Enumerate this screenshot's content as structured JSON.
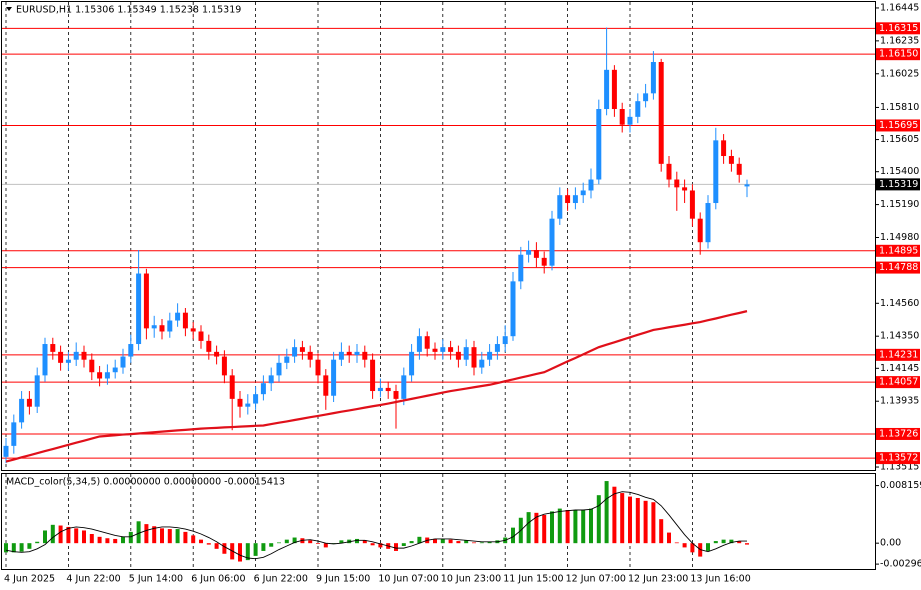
{
  "chart_data": [
    {
      "type": "candlestick",
      "title": "EURUSD,H1 1.15306 1.15349 1.15238 1.15319",
      "categories": [
        "4 Jun 2025",
        null,
        null,
        null,
        null,
        null,
        null,
        null,
        "4 Jun 22:00",
        null,
        null,
        null,
        null,
        null,
        null,
        null,
        "5 Jun 14:00",
        null,
        null,
        null,
        null,
        null,
        null,
        null,
        "6 Jun 06:00",
        null,
        null,
        null,
        null,
        null,
        null,
        null,
        "6 Jun 22:00",
        null,
        null,
        null,
        null,
        null,
        null,
        null,
        "9 Jun 15:00",
        null,
        null,
        null,
        null,
        null,
        null,
        null,
        "10 Jun 07:00",
        null,
        null,
        null,
        null,
        null,
        null,
        null,
        "10 Jun 23:00",
        null,
        null,
        null,
        null,
        null,
        null,
        null,
        "11 Jun 15:00",
        null,
        null,
        null,
        null,
        null,
        null,
        null,
        "12 Jun 07:00",
        null,
        null,
        null,
        null,
        null,
        null,
        null,
        "12 Jun 23:00",
        null,
        null,
        null,
        null,
        null,
        null,
        null,
        "13 Jun 16:00",
        null,
        null,
        null,
        null,
        null,
        null,
        null
      ],
      "open": [
        1.1358,
        1.1365,
        1.138,
        1.1395,
        1.139,
        1.141,
        1.143,
        1.1425,
        1.1418,
        1.142,
        1.1425,
        1.142,
        1.1412,
        1.1408,
        1.1412,
        1.1415,
        1.1422,
        1.143,
        1.1475,
        1.144,
        1.1442,
        1.1438,
        1.1445,
        1.145,
        1.144,
        1.1438,
        1.1432,
        1.1425,
        1.1422,
        1.141,
        1.1395,
        1.139,
        1.1392,
        1.1398,
        1.1405,
        1.141,
        1.1418,
        1.1422,
        1.1428,
        1.1425,
        1.142,
        1.141,
        1.1397,
        1.142,
        1.1425,
        1.1423,
        1.1425,
        1.142,
        1.14,
        1.1402,
        1.14,
        1.1395,
        1.141,
        1.1425,
        1.1435,
        1.1427,
        1.1425,
        1.1428,
        1.1425,
        1.142,
        1.1428,
        1.1415,
        1.142,
        1.1425,
        1.143,
        1.1435,
        1.147,
        1.1487,
        1.149,
        1.1485,
        1.148,
        1.151,
        1.1525,
        1.152,
        1.1525,
        1.1528,
        1.1535,
        1.158,
        1.1605,
        1.158,
        1.157,
        1.1575,
        1.1585,
        1.159,
        1.161,
        1.1545,
        1.1535,
        1.153,
        1.1528,
        1.151,
        1.1495,
        1.152,
        1.156,
        1.155,
        1.1545,
        1.15306
      ],
      "high": [
        1.137,
        1.1385,
        1.14,
        1.14,
        1.1415,
        1.1434,
        1.1434,
        1.1429,
        1.1425,
        1.1431,
        1.1429,
        1.1424,
        1.1416,
        1.1417,
        1.142,
        1.1427,
        1.1436,
        1.149,
        1.1478,
        1.1448,
        1.1446,
        1.145,
        1.1456,
        1.1453,
        1.1444,
        1.1442,
        1.1436,
        1.1429,
        1.1426,
        1.1414,
        1.14,
        1.1398,
        1.1403,
        1.141,
        1.1415,
        1.1423,
        1.1427,
        1.1433,
        1.1432,
        1.1429,
        1.1424,
        1.1414,
        1.1425,
        1.1431,
        1.1429,
        1.143,
        1.1429,
        1.1424,
        1.1408,
        1.1406,
        1.1404,
        1.1415,
        1.143,
        1.144,
        1.1438,
        1.1431,
        1.1433,
        1.1432,
        1.1429,
        1.1433,
        1.1432,
        1.1425,
        1.143,
        1.1435,
        1.1442,
        1.1476,
        1.1492,
        1.1496,
        1.1495,
        1.1489,
        1.1515,
        1.153,
        1.1529,
        1.153,
        1.1533,
        1.1542,
        1.1586,
        1.1632,
        1.1608,
        1.1584,
        1.158,
        1.159,
        1.1596,
        1.1617,
        1.1612,
        1.155,
        1.154,
        1.1535,
        1.1532,
        1.1514,
        1.1525,
        1.1568,
        1.1564,
        1.1554,
        1.1549,
        1.15349
      ],
      "low": [
        1.1354,
        1.136,
        1.1376,
        1.1385,
        1.1386,
        1.1406,
        1.142,
        1.1413,
        1.1413,
        1.1416,
        1.1415,
        1.1407,
        1.1403,
        1.1404,
        1.1408,
        1.1411,
        1.1418,
        1.1426,
        1.1433,
        1.1434,
        1.1433,
        1.1434,
        1.1441,
        1.1435,
        1.1433,
        1.1427,
        1.142,
        1.1417,
        1.1405,
        1.1375,
        1.1383,
        1.1385,
        1.1388,
        1.1394,
        1.14,
        1.1406,
        1.1414,
        1.1418,
        1.142,
        1.1415,
        1.1405,
        1.1388,
        1.1393,
        1.1416,
        1.1418,
        1.1418,
        1.1415,
        1.1395,
        1.1396,
        1.1395,
        1.1376,
        1.1391,
        1.1406,
        1.142,
        1.1422,
        1.142,
        1.142,
        1.142,
        1.1415,
        1.1416,
        1.141,
        1.1411,
        1.1416,
        1.142,
        1.1425,
        1.1432,
        1.1465,
        1.1482,
        1.1479,
        1.1475,
        1.1477,
        1.1506,
        1.1515,
        1.1516,
        1.152,
        1.1523,
        1.1532,
        1.1576,
        1.1575,
        1.1565,
        1.1565,
        1.1571,
        1.1581,
        1.1586,
        1.154,
        1.153,
        1.1515,
        1.152,
        1.1505,
        1.1487,
        1.1491,
        1.1516,
        1.1545,
        1.154,
        1.1533,
        1.15238
      ],
      "close": [
        1.1365,
        1.138,
        1.1395,
        1.139,
        1.141,
        1.143,
        1.1425,
        1.1418,
        1.142,
        1.1425,
        1.142,
        1.1412,
        1.1408,
        1.1412,
        1.1415,
        1.1422,
        1.143,
        1.1475,
        1.144,
        1.1442,
        1.1438,
        1.1445,
        1.145,
        1.144,
        1.1438,
        1.1432,
        1.1425,
        1.1422,
        1.141,
        1.1395,
        1.139,
        1.1392,
        1.1398,
        1.1405,
        1.141,
        1.1418,
        1.1422,
        1.1428,
        1.1425,
        1.142,
        1.141,
        1.1397,
        1.142,
        1.1425,
        1.1423,
        1.1425,
        1.142,
        1.14,
        1.1402,
        1.14,
        1.1395,
        1.141,
        1.1425,
        1.1435,
        1.1427,
        1.1425,
        1.1428,
        1.1425,
        1.142,
        1.1428,
        1.1415,
        1.142,
        1.1425,
        1.143,
        1.1435,
        1.147,
        1.1487,
        1.149,
        1.1485,
        1.148,
        1.151,
        1.1525,
        1.152,
        1.1525,
        1.1528,
        1.1535,
        1.158,
        1.1605,
        1.158,
        1.157,
        1.1575,
        1.1585,
        1.159,
        1.161,
        1.1545,
        1.1535,
        1.153,
        1.1528,
        1.151,
        1.1495,
        1.152,
        1.156,
        1.155,
        1.1545,
        1.1538,
        1.15319
      ],
      "ma": [
        1.1355,
        1.13563,
        1.13577,
        1.1359,
        1.13603,
        1.13617,
        1.1363,
        1.13643,
        1.13657,
        1.1367,
        1.13683,
        1.13697,
        1.1371,
        1.13714,
        1.13718,
        1.13722,
        1.13725,
        1.13729,
        1.13733,
        1.13737,
        1.13741,
        1.13745,
        1.13749,
        1.13752,
        1.13756,
        1.1376,
        1.13763,
        1.13765,
        1.13768,
        1.1377,
        1.13773,
        1.13775,
        1.13778,
        1.1378,
        1.13789,
        1.13798,
        1.13806,
        1.13815,
        1.13824,
        1.13833,
        1.13841,
        1.1385,
        1.13859,
        1.13868,
        1.13876,
        1.13885,
        1.13894,
        1.13903,
        1.13911,
        1.1392,
        1.1393,
        1.1394,
        1.1395,
        1.1396,
        1.1397,
        1.1398,
        1.1399,
        1.14,
        1.14008,
        1.14016,
        1.14024,
        1.14032,
        1.1404,
        1.14051,
        1.14063,
        1.14074,
        1.14086,
        1.14097,
        1.14109,
        1.1412,
        1.14143,
        1.14166,
        1.14189,
        1.14211,
        1.14234,
        1.14257,
        1.1428,
        1.14296,
        1.14311,
        1.14327,
        1.14343,
        1.14359,
        1.14374,
        1.1439,
        1.14398,
        1.14407,
        1.14415,
        1.14423,
        1.14432,
        1.1444,
        1.14452,
        1.14463,
        1.14475,
        1.14487,
        1.14498,
        1.1451
      ],
      "levels": [
        1.16315,
        {
          "value": 1.1615,
          "label": "1.16150"
        },
        1.15695,
        1.14895,
        1.14788,
        1.14231,
        1.14057,
        1.13726,
        1.13572
      ],
      "last_price": 1.15319,
      "ylim": [
        1.13496,
        1.16483
      ],
      "yticks": [
        1.16445,
        1.16235,
        1.16025,
        {
          "value": 1.1581,
          "label": "1.15810"
        },
        1.15605,
        {
          "value": 1.154,
          "label": "1.15400"
        },
        {
          "value": 1.1519,
          "label": "1.15190"
        },
        {
          "value": 1.1498,
          "label": "1.14980"
        },
        {
          "value": 1.1456,
          "label": "1.14560"
        },
        {
          "value": 1.1435,
          "label": "1.14350"
        },
        1.14145,
        1.13935,
        1.13515
      ],
      "up_color": "#1e8fff",
      "down_color": "#ff0000",
      "ma_color": "#e0101a",
      "level_color": "#ff0000",
      "last_color": "#c0c0c0",
      "grid": true
    },
    {
      "type": "bar",
      "title": "MACD_color(5,34,5) 0.00000000 0.00000000 -0.00015413",
      "values": [
        -0.0013,
        -0.0013,
        -0.0012,
        -0.0008,
        0.0002,
        0.0018,
        0.0026,
        0.0025,
        0.0023,
        0.0021,
        0.0018,
        0.0013,
        0.0009,
        0.0007,
        0.0006,
        0.0009,
        0.0016,
        0.0031,
        0.0027,
        0.0024,
        0.0021,
        0.002,
        0.002,
        0.0016,
        0.0011,
        0.0005,
        -0.0002,
        -0.0008,
        -0.0015,
        -0.0023,
        -0.0026,
        -0.0024,
        -0.0018,
        -0.0011,
        -0.0005,
        0.0001,
        0.0005,
        0.0008,
        0.0007,
        0.0004,
        -0.0001,
        -0.0006,
        0,
        0.0004,
        0.0005,
        0.0006,
        0.0004,
        -0.0003,
        -0.0006,
        -0.0008,
        -0.0011,
        -0.0004,
        0.0003,
        0.0009,
        0.0008,
        0.0006,
        0.0006,
        0.0005,
        0.0003,
        0.0004,
        0.0001,
        0.0001,
        0.0002,
        0.0004,
        0.0008,
        0.0022,
        0.0036,
        0.0044,
        0.0043,
        0.004,
        0.0045,
        0.0049,
        0.0047,
        0.0047,
        0.0047,
        0.0049,
        0.0068,
        0.0088,
        0.008,
        0.0071,
        0.0066,
        0.0064,
        0.006,
        0.0058,
        0.0034,
        0.0015,
        0.0001,
        -0.0006,
        -0.0013,
        -0.0019,
        -0.0011,
        0.0003,
        0.0005,
        0.0005,
        0.0003,
        -0.0002
      ],
      "signal": [
        -0.001,
        -0.0012,
        -0.0013,
        -0.0012,
        -0.0008,
        -0.0002,
        0.0008,
        0.0016,
        0.0021,
        0.0023,
        0.0022,
        0.002,
        0.0017,
        0.0014,
        0.0011,
        0.0009,
        0.0009,
        0.0014,
        0.0018,
        0.0021,
        0.0023,
        0.0023,
        0.0022,
        0.002,
        0.0017,
        0.0013,
        0.0008,
        0.0002,
        -0.0005,
        -0.0011,
        -0.0017,
        -0.0021,
        -0.0022,
        -0.002,
        -0.0015,
        -0.0009,
        -0.0004,
        0.0001,
        0.0004,
        0.0005,
        0.0003,
        0,
        -0.0001,
        0,
        0.0002,
        0.0004,
        0.0004,
        0.0002,
        -0.0001,
        -0.0004,
        -0.0007,
        -0.0007,
        -0.0004,
        0,
        0.0004,
        0.0006,
        0.0006,
        0.0006,
        0.0005,
        0.0004,
        0.0003,
        0.0002,
        0.0002,
        0.0002,
        0.0004,
        0.0009,
        0.0018,
        0.0029,
        0.0037,
        0.0041,
        0.0043,
        0.0045,
        0.0046,
        0.0047,
        0.0047,
        0.0048,
        0.0053,
        0.0063,
        0.007,
        0.0073,
        0.0072,
        0.0069,
        0.0065,
        0.0062,
        0.0053,
        0.004,
        0.0026,
        0.0012,
        0,
        -0.0009,
        -0.0012,
        -0.0008,
        -0.0003,
        0.0001,
        0.0003,
        0.0003
      ],
      "ylim": [
        -0.0038,
        0.0098
      ],
      "yticks": [
        0.0081598,
        {
          "value": 0,
          "label": "0.00"
        },
        -0.002966
      ],
      "up_color": "#109a10",
      "down_color": "#ff0000",
      "signal_color": "#000000"
    }
  ]
}
